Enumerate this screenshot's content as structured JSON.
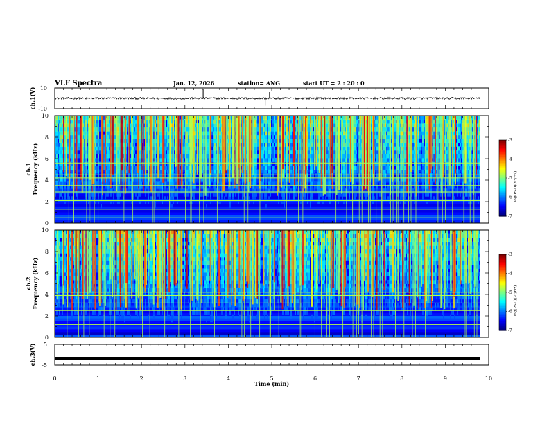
{
  "header": {
    "title": "VLF Spectra",
    "date": "Jan. 12, 2026",
    "station": "station= ANG",
    "start": "start  UT =  2 : 20 : 0"
  },
  "chart_data": {
    "type": "heatmap",
    "xlabel": "Time  (min)",
    "xlim": [
      0,
      10
    ],
    "x_ticks": [
      "0",
      "1",
      "2",
      "3",
      "4",
      "5",
      "6",
      "7",
      "8",
      "9",
      "10"
    ],
    "data_end_min": 9.8,
    "panels": [
      {
        "type": "line",
        "ylabel": "ch.1(V)",
        "ylim": [
          -10,
          10
        ],
        "y_ticks": [
          "10",
          "-10"
        ],
        "baseline": 0,
        "noise_amplitude": 1,
        "spikes": [
          {
            "t": 3.42,
            "v": 9
          },
          {
            "t": 4.95,
            "v": 6
          },
          {
            "t": 4.85,
            "v": -7
          },
          {
            "t": 5.95,
            "v": 4
          }
        ]
      },
      {
        "type": "heatmap",
        "ylabel_top": "ch.1",
        "ylabel": "Frequency  (kHz)",
        "ylim": [
          0,
          10
        ],
        "y_ticks": [
          "0",
          "2",
          "4",
          "6",
          "8",
          "10"
        ],
        "colorbar": {
          "label": "log(PSD)(V²/Hz)",
          "ticks": [
            "-3",
            "-4",
            "-5",
            "-6",
            "-7"
          ],
          "range": [
            -7,
            -3
          ]
        },
        "line_freqs_khz": [
          0.5,
          1.3,
          2.1,
          2.9,
          3.5,
          4.2,
          4.5,
          5.6
        ]
      },
      {
        "type": "heatmap",
        "ylabel_top": "ch.2",
        "ylabel": "Frequency  (kHz)",
        "ylim": [
          0,
          10
        ],
        "y_ticks": [
          "0",
          "2",
          "4",
          "6",
          "8",
          "10"
        ],
        "colorbar": {
          "label": "log(PSD)(V²/Hz)",
          "ticks": [
            "-3",
            "-4",
            "-5",
            "-6",
            "-7"
          ],
          "range": [
            -7,
            -3
          ]
        },
        "line_freqs_khz": [
          1.2,
          1.9,
          2.5,
          3.2,
          3.9,
          4.2
        ]
      },
      {
        "type": "line",
        "ylabel": "ch.3(V)",
        "ylim": [
          -5,
          5
        ],
        "y_ticks": [
          "5",
          "-5"
        ],
        "baseline": -2,
        "noise_amplitude": 0,
        "spikes": []
      }
    ]
  }
}
